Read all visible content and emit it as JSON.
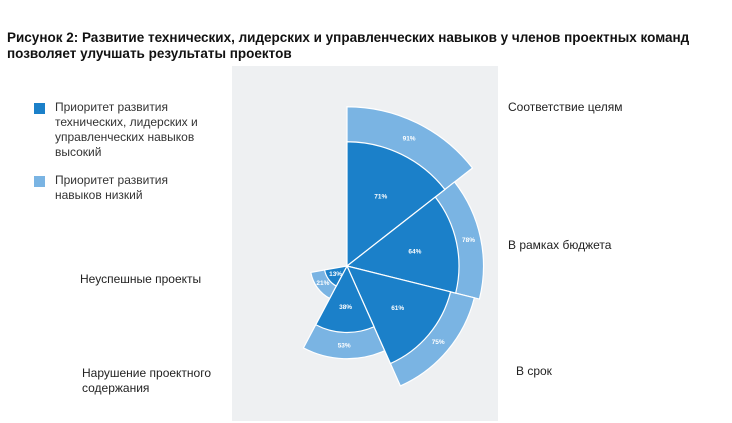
{
  "title": "Рисунок 2: Развитие технических, лидерских и управленческих навыков у членов проектных команд позволяет улучшать результаты проектов",
  "colors": {
    "high": "#1b80c9",
    "low": "#7ab4e3",
    "panel": "#eef0f2",
    "label": "#ffffff"
  },
  "chart_data": {
    "type": "polar-area",
    "title": "Рисунок 2: Развитие технических, лидерских и управленческих навыков у членов проектных команд позволяет улучшать результаты проектов",
    "categories": [
      "Соответствие целям",
      "В рамках бюджета",
      "В срок",
      "Нарушение проектного содержания",
      "Неуспешные проекты"
    ],
    "series": [
      {
        "name": "Приоритет развития технических, лидерских и управленческих навыков высокий",
        "values": [
          71,
          64,
          61,
          38,
          13
        ]
      },
      {
        "name": "Приоритет развития навыков низкий",
        "values": [
          91,
          78,
          75,
          53,
          21
        ]
      }
    ],
    "value_labels": {
      "high": [
        "71%",
        "64%",
        "61%",
        "38%",
        "13%"
      ],
      "low": [
        "91%",
        "78%",
        "75%",
        "53%",
        "21%"
      ]
    },
    "legend_position": "left"
  }
}
